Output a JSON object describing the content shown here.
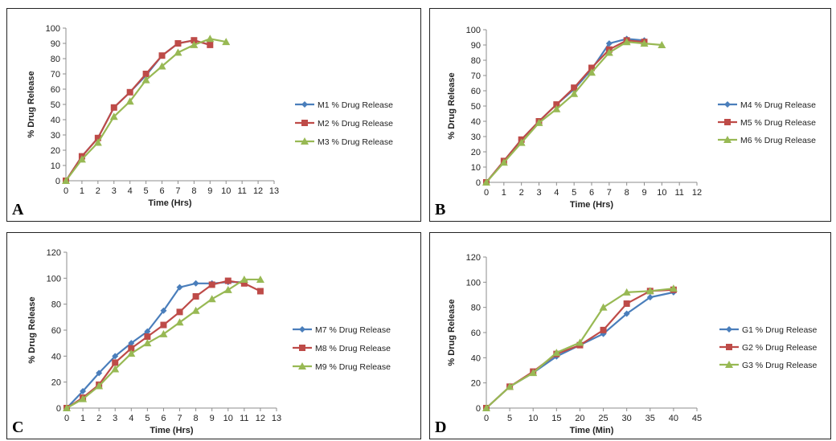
{
  "chart_data": [
    {
      "type": "line",
      "panel_label": "A",
      "xlabel": "Time (Hrs)",
      "ylabel": "% Drug Release",
      "xlim": [
        0,
        13
      ],
      "ylim": [
        0,
        100
      ],
      "xticks": [
        0,
        1,
        2,
        3,
        4,
        5,
        6,
        7,
        8,
        9,
        10,
        11,
        12,
        13
      ],
      "yticks": [
        0,
        10,
        20,
        30,
        40,
        50,
        60,
        70,
        80,
        90,
        100
      ],
      "grid": false,
      "legend_position": "right",
      "series": [
        {
          "name": "M1 % Drug Release",
          "color": "#4a7ebb",
          "marker": "diamond",
          "x": [
            0,
            1,
            2,
            3,
            4,
            5,
            6,
            7,
            8,
            9
          ],
          "y": [
            0,
            16,
            28,
            48,
            58,
            69,
            82,
            90,
            92,
            89
          ]
        },
        {
          "name": "M2 % Drug Release",
          "color": "#be4b48",
          "marker": "square",
          "x": [
            0,
            1,
            2,
            3,
            4,
            5,
            6,
            7,
            8,
            9
          ],
          "y": [
            0,
            16,
            28,
            48,
            58,
            70,
            82,
            90,
            92,
            89
          ]
        },
        {
          "name": "M3 % Drug Release",
          "color": "#98b954",
          "marker": "triangle",
          "x": [
            0,
            1,
            2,
            3,
            4,
            5,
            6,
            7,
            8,
            9,
            10
          ],
          "y": [
            0,
            14,
            25,
            42,
            52,
            66,
            75,
            84,
            89,
            93,
            91
          ]
        }
      ]
    },
    {
      "type": "line",
      "panel_label": "B",
      "xlabel": "Time (Hrs)",
      "ylabel": "% Drug Release",
      "xlim": [
        0,
        12
      ],
      "ylim": [
        0,
        100
      ],
      "xticks": [
        0,
        1,
        2,
        3,
        4,
        5,
        6,
        7,
        8,
        9,
        10,
        11,
        12
      ],
      "yticks": [
        0,
        10,
        20,
        30,
        40,
        50,
        60,
        70,
        80,
        90,
        100
      ],
      "grid": false,
      "legend_position": "right",
      "series": [
        {
          "name": "M4 % Drug Release",
          "color": "#4a7ebb",
          "marker": "diamond",
          "x": [
            0,
            1,
            2,
            3,
            4,
            5,
            6,
            7,
            8,
            9
          ],
          "y": [
            0,
            14,
            28,
            40,
            51,
            61,
            74,
            91,
            94,
            93
          ]
        },
        {
          "name": "M5 % Drug Release",
          "color": "#be4b48",
          "marker": "square",
          "x": [
            0,
            1,
            2,
            3,
            4,
            5,
            6,
            7,
            8,
            9
          ],
          "y": [
            0,
            14,
            28,
            40,
            51,
            62,
            75,
            87,
            93,
            92
          ]
        },
        {
          "name": "M6 % Drug Release",
          "color": "#98b954",
          "marker": "triangle",
          "x": [
            0,
            1,
            2,
            3,
            4,
            5,
            6,
            7,
            8,
            9,
            10
          ],
          "y": [
            0,
            13,
            26,
            39,
            48,
            58,
            72,
            85,
            92,
            91,
            90
          ]
        }
      ]
    },
    {
      "type": "line",
      "panel_label": "C",
      "xlabel": "Time (Hrs)",
      "ylabel": "% Drug Release",
      "xlim": [
        0,
        13
      ],
      "ylim": [
        0,
        120
      ],
      "xticks": [
        0,
        1,
        2,
        3,
        4,
        5,
        6,
        7,
        8,
        9,
        10,
        11,
        12,
        13
      ],
      "yticks": [
        0,
        20,
        40,
        60,
        80,
        100,
        120
      ],
      "grid": false,
      "legend_position": "right",
      "series": [
        {
          "name": "M7 % Drug Release",
          "color": "#4a7ebb",
          "marker": "diamond",
          "x": [
            0,
            1,
            2,
            3,
            4,
            5,
            6,
            7,
            8,
            9,
            10,
            11
          ],
          "y": [
            0,
            13,
            27,
            40,
            50,
            59,
            75,
            93,
            96,
            96,
            97,
            97
          ]
        },
        {
          "name": "M8 % Drug Release",
          "color": "#be4b48",
          "marker": "square",
          "x": [
            0,
            1,
            2,
            3,
            4,
            5,
            6,
            7,
            8,
            9,
            10,
            11,
            12
          ],
          "y": [
            0,
            8,
            18,
            35,
            46,
            55,
            64,
            74,
            86,
            95,
            98,
            96,
            90
          ]
        },
        {
          "name": "M9 % Drug Release",
          "color": "#98b954",
          "marker": "triangle",
          "x": [
            0,
            1,
            2,
            3,
            4,
            5,
            6,
            7,
            8,
            9,
            10,
            11,
            12
          ],
          "y": [
            0,
            7,
            17,
            30,
            42,
            50,
            57,
            66,
            75,
            84,
            91,
            99,
            99
          ]
        }
      ]
    },
    {
      "type": "line",
      "panel_label": "D",
      "xlabel": "Time (Min)",
      "ylabel": "% Drug Release",
      "xlim": [
        0,
        45
      ],
      "ylim": [
        0,
        120
      ],
      "xticks": [
        0,
        5,
        10,
        15,
        20,
        25,
        30,
        35,
        40,
        45
      ],
      "yticks": [
        0,
        20,
        40,
        60,
        80,
        100,
        120
      ],
      "grid": false,
      "legend_position": "right",
      "series": [
        {
          "name": "G1 % Drug Release",
          "color": "#4a7ebb",
          "marker": "diamond",
          "x": [
            0,
            5,
            10,
            15,
            20,
            25,
            30,
            35,
            40
          ],
          "y": [
            0,
            17,
            28,
            41,
            50,
            59,
            75,
            88,
            92
          ]
        },
        {
          "name": "G2 % Drug Release",
          "color": "#be4b48",
          "marker": "square",
          "x": [
            0,
            5,
            10,
            15,
            20,
            25,
            30,
            35,
            40
          ],
          "y": [
            0,
            17,
            29,
            43,
            50,
            62,
            83,
            93,
            94
          ]
        },
        {
          "name": "G3 % Drug Release",
          "color": "#98b954",
          "marker": "triangle",
          "x": [
            0,
            5,
            10,
            15,
            20,
            25,
            30,
            35,
            40
          ],
          "y": [
            0,
            17,
            28,
            44,
            52,
            80,
            92,
            93,
            95
          ]
        }
      ]
    }
  ]
}
